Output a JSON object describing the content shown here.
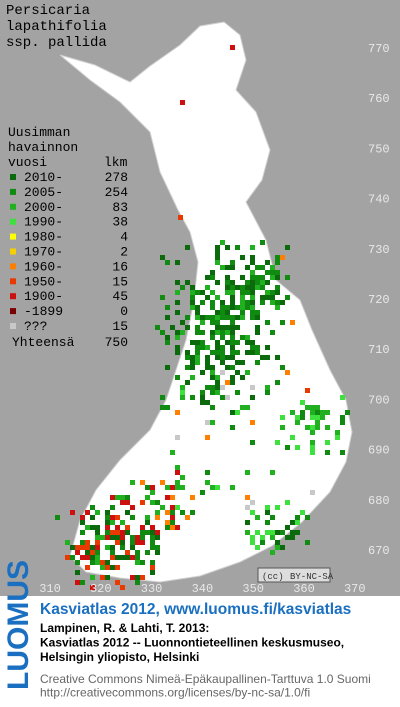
{
  "title": [
    "Persicaria",
    "lapathifolia",
    "ssp. pallida"
  ],
  "legend": {
    "header": [
      "Uusimman",
      "havainnon"
    ],
    "col_period": "vuosi",
    "col_count": "lkm",
    "rows": [
      {
        "label": "2010-",
        "count": 278,
        "color": "#0b6a0b"
      },
      {
        "label": "2005-",
        "count": 254,
        "color": "#118a11"
      },
      {
        "label": "2000-",
        "count": 83,
        "color": "#20b020"
      },
      {
        "label": "1990-",
        "count": 38,
        "color": "#3ee03e"
      },
      {
        "label": "1980-",
        "count": 4,
        "color": "#ffff00"
      },
      {
        "label": "1970-",
        "count": 2,
        "color": "#f4d000"
      },
      {
        "label": "1960-",
        "count": 16,
        "color": "#ff8000"
      },
      {
        "label": "1950-",
        "count": 15,
        "color": "#e83a00"
      },
      {
        "label": "1900-",
        "count": 45,
        "color": "#cc1010"
      },
      {
        "label": "-1899",
        "count": 0,
        "color": "#7a0000"
      },
      {
        "label": "???",
        "count": 15,
        "color": "#c8c8c8"
      }
    ],
    "total_label": "Yhteensä",
    "total": 750
  },
  "grid": {
    "northing": [
      770,
      760,
      750,
      740,
      730,
      720,
      710,
      700,
      690,
      680,
      670
    ],
    "easting": [
      310,
      320,
      330,
      340,
      350,
      360,
      370
    ]
  },
  "cc_badge": "BY-NC-SA",
  "footer": {
    "logo": "LUOMUS",
    "headline": "Kasviatlas 2012, www.luomus.fi/kasviatlas",
    "citation": [
      "Lampinen, R. & Lahti, T. 2013:",
      "Kasviatlas 2012 -- Luonnontieteellinen keskusmuseo,",
      "Helsingin yliopisto, Helsinki"
    ],
    "license": [
      "Creative Commons Nimeä-Epäkaupallinen-Tarttuva 1.0 Suomi",
      "http://creativecommons.org/licenses/by-nc-sa/1.0/fi"
    ]
  }
}
